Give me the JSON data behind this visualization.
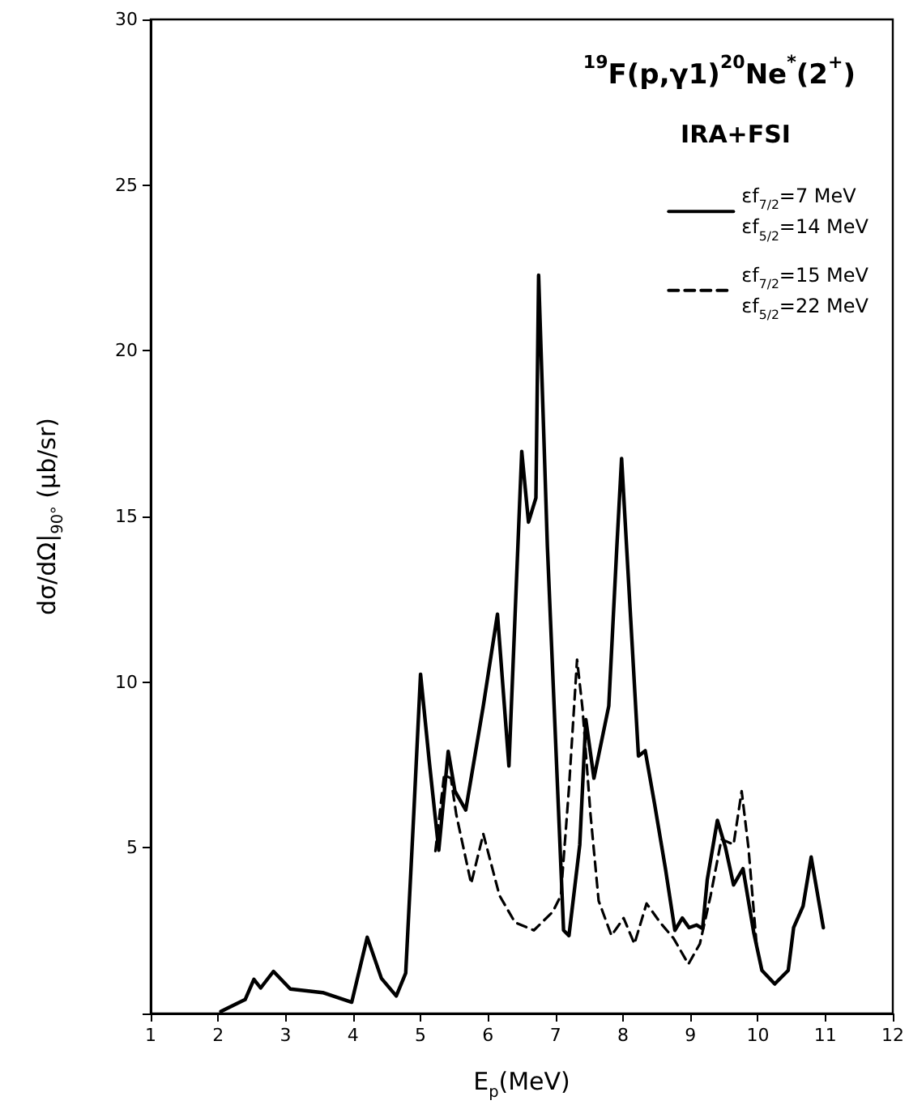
{
  "chart_data": {
    "type": "line",
    "title": "$^{19}$F(p,γ1)$^{20}$Ne$^{*}$(2$^{+}$)",
    "subtitle": "IRA+FSI",
    "xlabel": "E$_{p}$(MeV)",
    "ylabel": "dσ/dΩ|$_{90°}$ (μb/sr)",
    "xlim": [
      1,
      12
    ],
    "xticks": [
      1,
      2,
      3,
      4,
      5,
      6,
      7,
      8,
      9,
      10,
      11,
      12
    ],
    "ylim": [
      0,
      30
    ],
    "yticks": [
      {
        "value": 0,
        "label": null
      },
      5,
      10,
      15,
      20,
      25,
      30
    ],
    "grid": false,
    "legend": "top right",
    "marker": "none",
    "series": [
      {
        "name": "εf$_{7/2}$=7 MeV\nεf$_{5/2}$=14 MeV",
        "color": "#000000",
        "line_style": "solid",
        "x": [
          2.04,
          2.4,
          2.53,
          2.63,
          2.82,
          3.07,
          3.55,
          3.98,
          4.21,
          4.42,
          4.64,
          4.78,
          4.9,
          5.0,
          5.13,
          5.27,
          5.41,
          5.51,
          5.67,
          5.93,
          6.14,
          6.31,
          6.5,
          6.6,
          6.71,
          6.75,
          6.88,
          7.12,
          7.2,
          7.36,
          7.45,
          7.57,
          7.79,
          7.91,
          7.98,
          8.23,
          8.33,
          8.47,
          8.63,
          8.77,
          8.88,
          8.98,
          9.09,
          9.18,
          9.25,
          9.4,
          9.52,
          9.64,
          9.78,
          9.94,
          10.06,
          10.25,
          10.45,
          10.53,
          10.67,
          10.79,
          10.97
        ],
        "values": [
          0.06,
          0.42,
          1.03,
          0.77,
          1.27,
          0.74,
          0.63,
          0.34,
          2.3,
          1.06,
          0.53,
          1.22,
          6.05,
          10.24,
          7.59,
          4.93,
          7.91,
          6.71,
          6.14,
          9.28,
          12.05,
          7.47,
          16.96,
          14.83,
          15.56,
          22.28,
          14.1,
          2.51,
          2.35,
          5.09,
          8.87,
          7.1,
          9.28,
          14.1,
          16.75,
          7.77,
          7.93,
          6.31,
          4.37,
          2.51,
          2.88,
          2.59,
          2.67,
          2.56,
          4.04,
          5.83,
          5.01,
          3.88,
          4.37,
          2.43,
          1.3,
          0.89,
          1.3,
          2.59,
          3.24,
          4.72,
          2.59
        ]
      },
      {
        "name": "εf$_{7/2}$=15 MeV\nεf$_{5/2}$=22 MeV",
        "color": "#000000",
        "line_style": "dashed",
        "x": [
          5.22,
          5.35,
          5.45,
          5.53,
          5.75,
          5.93,
          6.17,
          6.4,
          6.68,
          6.96,
          7.08,
          7.2,
          7.32,
          7.4,
          7.52,
          7.64,
          7.83,
          8.01,
          8.17,
          8.35,
          8.55,
          8.75,
          8.97,
          9.14,
          9.3,
          9.46,
          9.64,
          9.76,
          9.86,
          9.98
        ],
        "values": [
          4.9,
          7.2,
          7.1,
          6.0,
          3.92,
          5.42,
          3.56,
          2.75,
          2.51,
          3.07,
          3.56,
          6.8,
          10.68,
          9.22,
          5.99,
          3.4,
          2.35,
          2.88,
          2.1,
          3.32,
          2.75,
          2.27,
          1.49,
          2.1,
          3.56,
          5.26,
          5.1,
          6.71,
          5.01,
          2.1
        ]
      }
    ]
  }
}
